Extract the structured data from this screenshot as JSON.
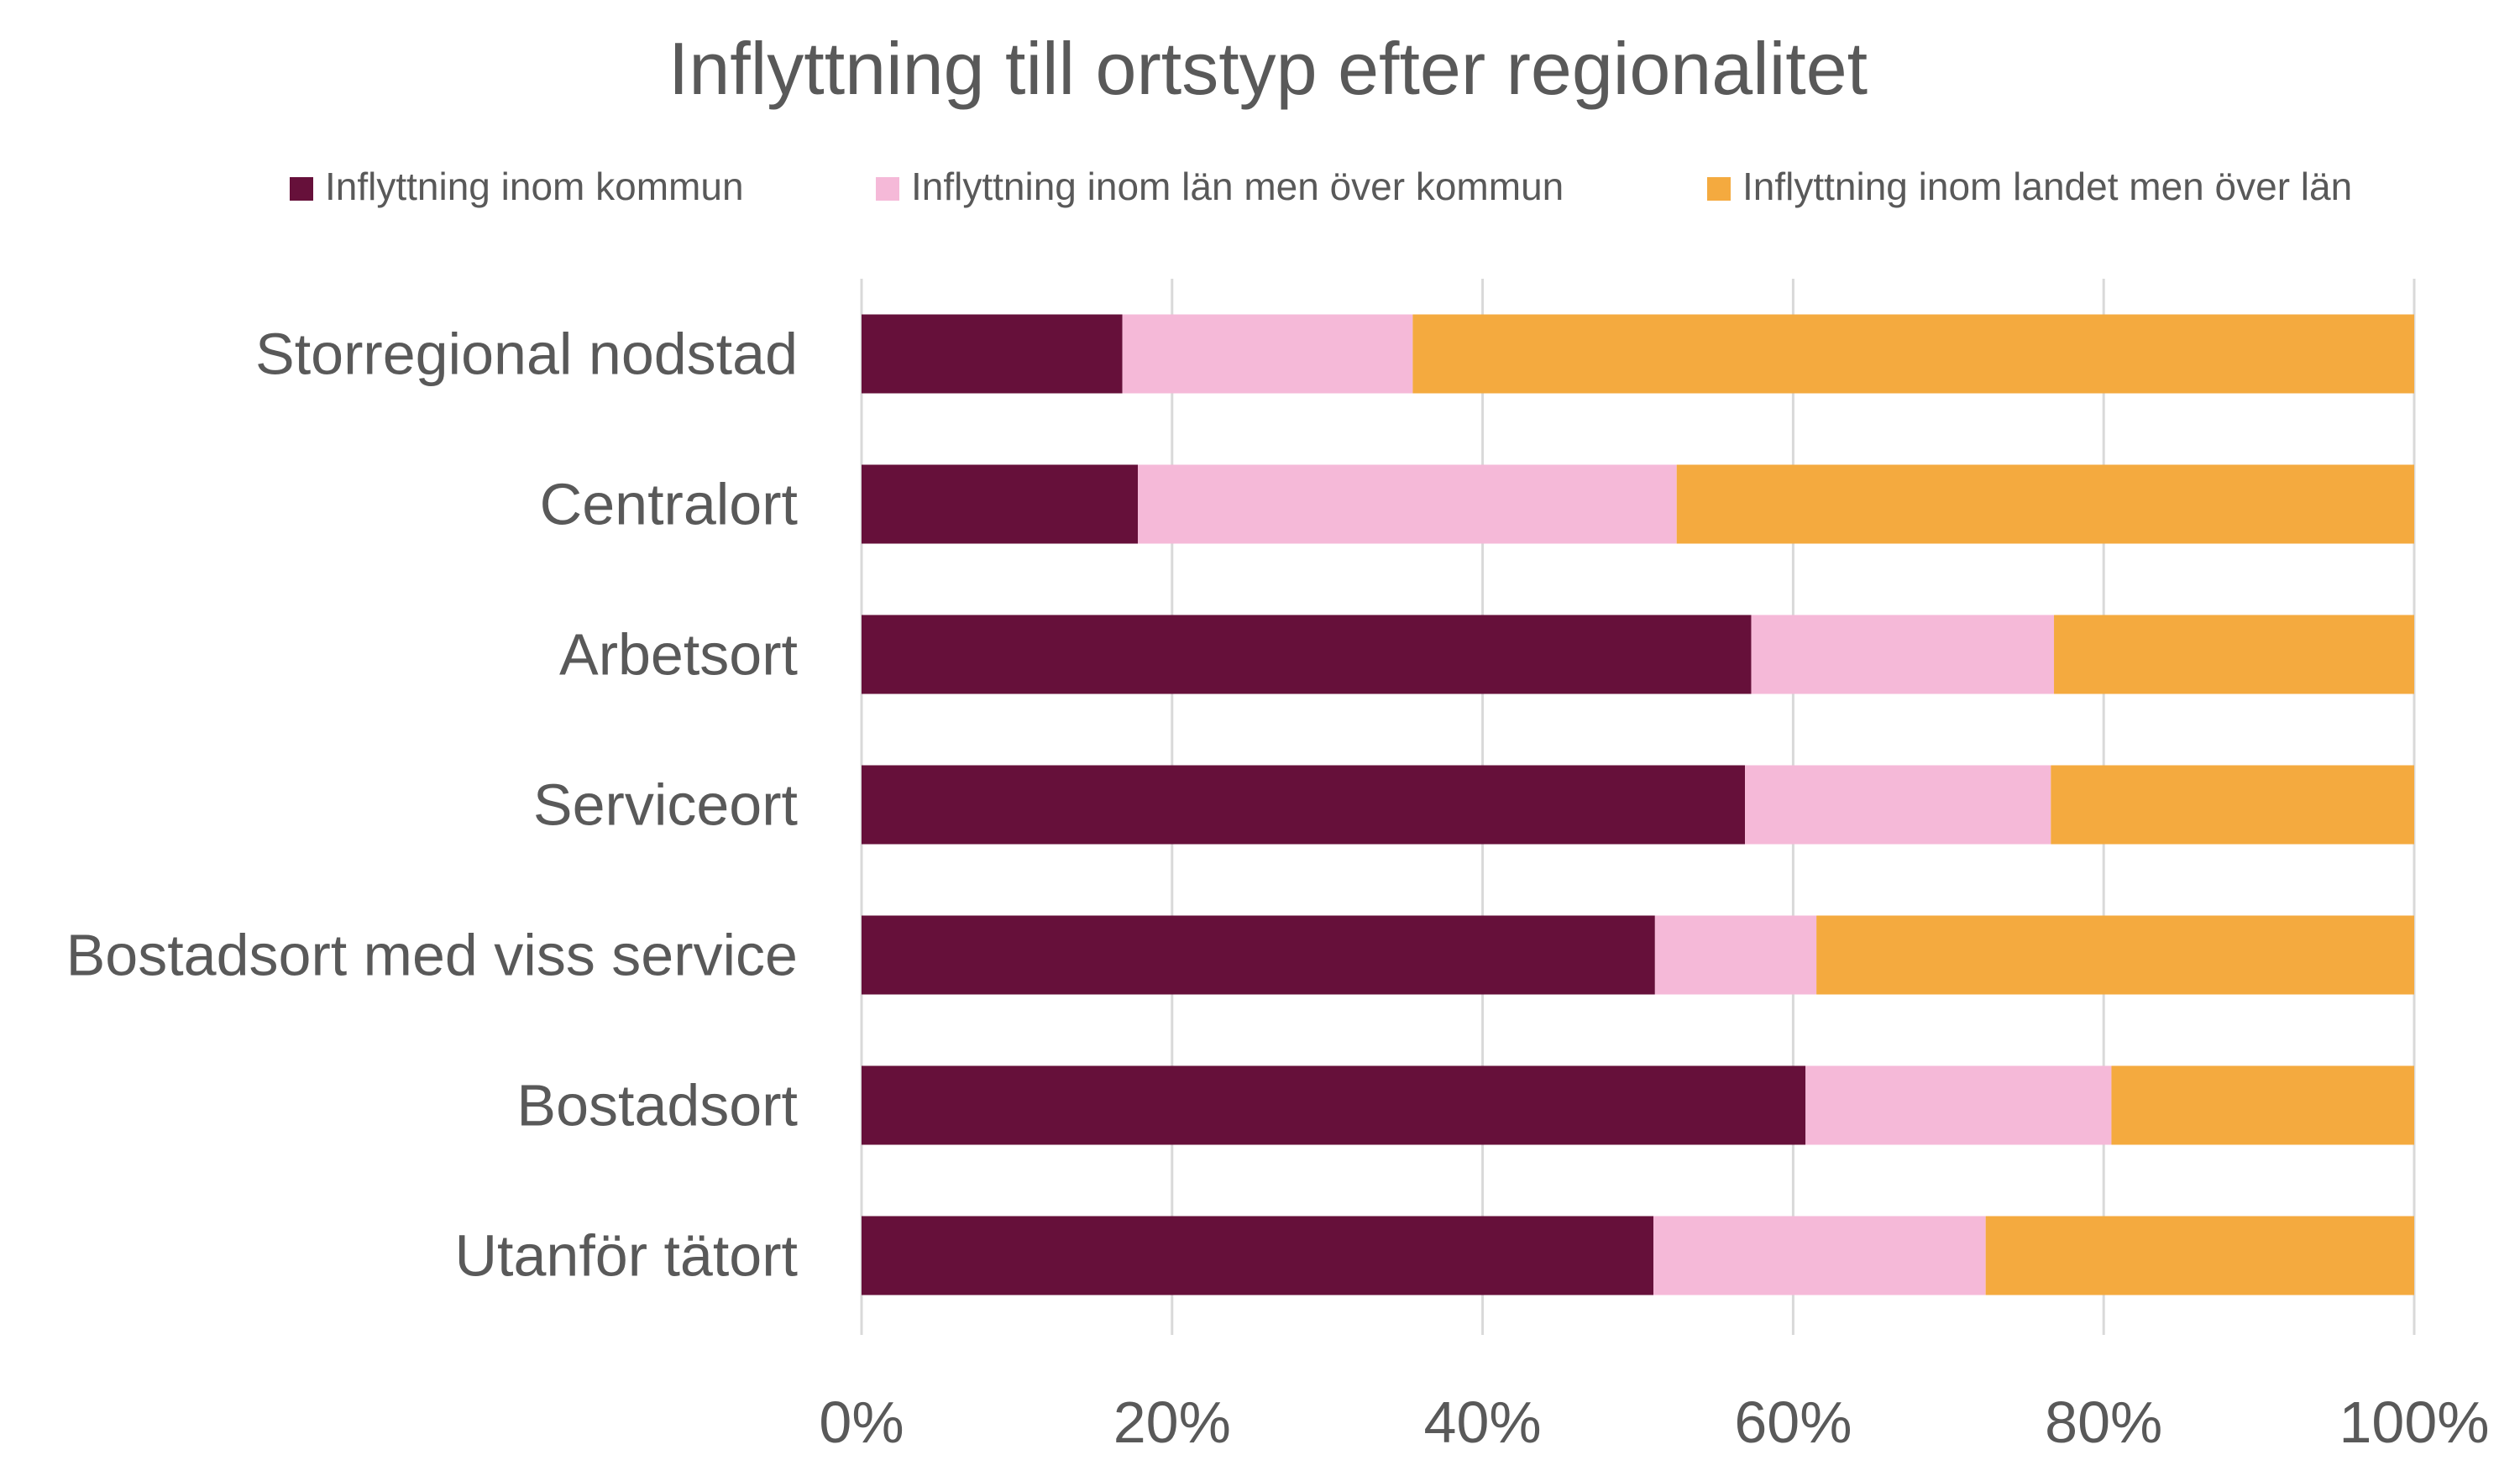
{
  "chart_data": {
    "type": "bar",
    "orientation": "horizontal",
    "stacked": "percent",
    "title": "Inflyttning till ortstyp efter regionalitet",
    "xlabel": "",
    "ylabel": "",
    "categories": [
      "Storregional nodstad",
      "Centralort",
      "Arbetsort",
      "Serviceort",
      "Bostadsort med viss service",
      "Bostadsort",
      "Utanför tätort"
    ],
    "series": [
      {
        "name": "Inflyttning inom kommun",
        "color": "#66103a",
        "values": [
          16.8,
          17.8,
          57.3,
          56.9,
          51.1,
          60.8,
          51.0
        ]
      },
      {
        "name": "Inflyttning inom län men över kommun",
        "color": "#f5b9d8",
        "values": [
          18.7,
          34.7,
          19.5,
          19.7,
          10.4,
          19.7,
          21.4
        ]
      },
      {
        "name": "Inflyttning inom landet men över län",
        "color": "#f4aa3f",
        "values": [
          64.5,
          47.5,
          23.2,
          23.4,
          38.5,
          19.5,
          27.6
        ]
      }
    ],
    "xlim": [
      0,
      100
    ],
    "xticks": [
      "0%",
      "20%",
      "40%",
      "60%",
      "80%",
      "100%"
    ],
    "grid": true,
    "legend_position": "top"
  }
}
